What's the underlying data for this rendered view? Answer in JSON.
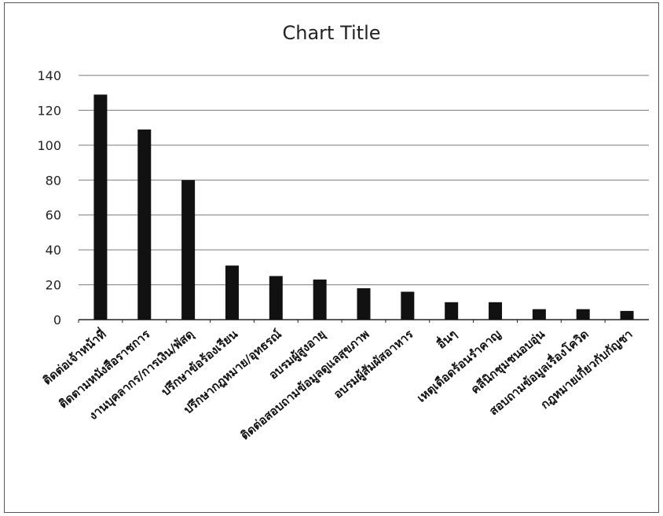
{
  "chart_data": {
    "type": "bar",
    "title": "Chart Title",
    "xlabel": "",
    "ylabel": "",
    "ylim": [
      0,
      140
    ],
    "yticks": [
      0,
      20,
      40,
      60,
      80,
      100,
      120,
      140
    ],
    "grid": true,
    "legend": "none",
    "bar_color": "#111111",
    "categories": [
      "ติดต่อเจ้าหน้าที่",
      "ติดตามหนังสือราชการ",
      "งานบุคลากร/การเงิน/พัสดุ",
      "ปรึกษาข้อร้องเรียน",
      "ปรึกษากฎหมาย/อุทธรณ์",
      "อบรมผู้สูงอายุ",
      "ติดต่อสอบถามข้อมูลดูแลสุขภาพ",
      "อบรมผู้สัมผัสอาหาร",
      "อื่นๆ",
      "เหตุเดือดร้อนรำคาญ",
      "คลีนิกชุมชนอบอุ่น",
      "สอบถามข้อมูลเรื่องโควิด",
      "กฎหมายเกี่ยวกับกัญชา"
    ],
    "values": [
      129,
      109,
      80,
      31,
      25,
      23,
      18,
      16,
      10,
      10,
      6,
      6,
      5
    ]
  }
}
